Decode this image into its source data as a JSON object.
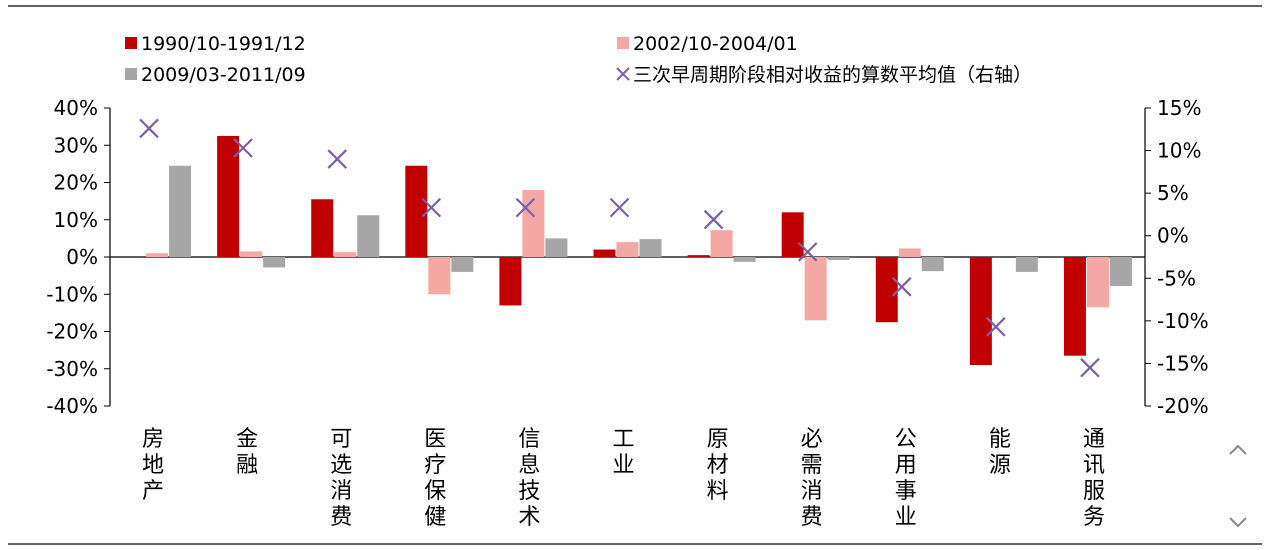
{
  "chart_data": {
    "type": "bar",
    "categories": [
      "房地产",
      "金融",
      "可选消费",
      "医疗保健",
      "信息技术",
      "工业",
      "原材料",
      "必需消费",
      "公用事业",
      "能源",
      "通讯服务"
    ],
    "series": [
      {
        "name": "1990/10-1991/12",
        "type": "bar",
        "axis": "left",
        "color": "#c00000",
        "values": [
          0,
          32.5,
          15.5,
          24.5,
          -13,
          2,
          0.5,
          12,
          -17.5,
          -29,
          -26.5
        ]
      },
      {
        "name": "2002/10-2004/01",
        "type": "bar",
        "axis": "left",
        "color": "#f4a8a4",
        "values": [
          1,
          1.5,
          1.3,
          -10,
          18,
          4,
          7.2,
          -17,
          2.3,
          0,
          -13.5
        ]
      },
      {
        "name": "2009/03-2011/09",
        "type": "bar",
        "axis": "left",
        "color": "#a6a6a6",
        "values": [
          24.5,
          -2.8,
          11.2,
          -4,
          5,
          4.8,
          -1.3,
          -0.8,
          -3.8,
          -4,
          -7.8
        ]
      },
      {
        "name": "三次早周期阶段相对收益的算数平均值（右轴）",
        "type": "scatter",
        "axis": "right",
        "color": "#7d5fa6",
        "values": [
          12.6,
          10.3,
          9,
          3.3,
          3.3,
          3.3,
          1.9,
          -1.9,
          -6,
          -10.7,
          -15.5
        ]
      }
    ],
    "y_left": {
      "min": -40,
      "max": 40,
      "step": 10,
      "ticks": [
        "-40%",
        "-30%",
        "-20%",
        "-10%",
        "0%",
        "10%",
        "20%",
        "30%",
        "40%"
      ]
    },
    "y_right": {
      "min": -20,
      "max": 15,
      "step": 5,
      "ticks": [
        "-20%",
        "-15%",
        "-10%",
        "-5%",
        "0%",
        "5%",
        "10%",
        "15%"
      ]
    },
    "grid": false,
    "legend_position": "top"
  },
  "nav": {
    "up_icon": "chevron-up-icon",
    "down_icon": "chevron-down-icon"
  }
}
